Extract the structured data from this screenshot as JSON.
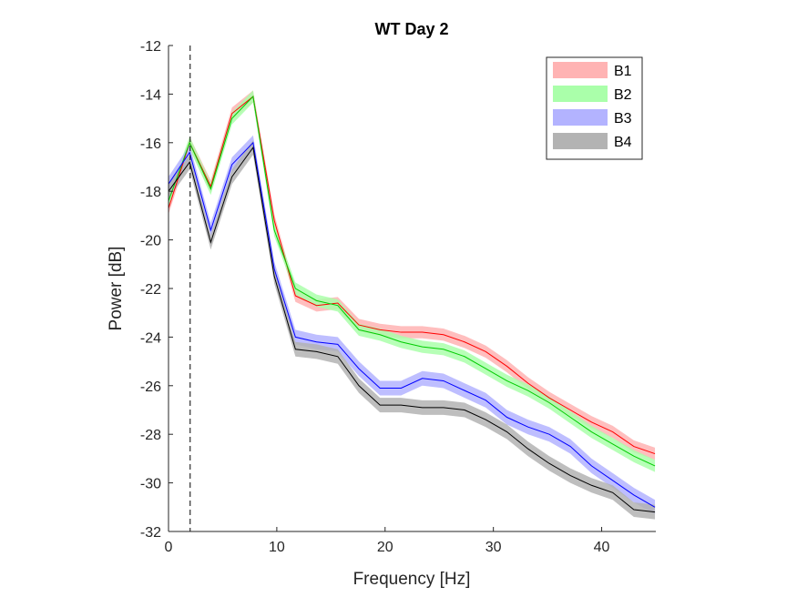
{
  "chart_data": {
    "type": "line",
    "title": "WT Day 2",
    "xlabel": "Frequency [Hz]",
    "ylabel": "Power [dB]",
    "xlim": [
      0,
      45
    ],
    "ylim": [
      -32,
      -12
    ],
    "xticks": [
      0,
      10,
      20,
      30,
      40
    ],
    "yticks": [
      -32,
      -30,
      -28,
      -26,
      -24,
      -22,
      -20,
      -18,
      -16,
      -14,
      -12
    ],
    "grid": false,
    "legend_position": "top-right",
    "vertical_marker_x": 2,
    "x": [
      0,
      1.95,
      3.9,
      5.86,
      7.81,
      9.77,
      11.72,
      13.67,
      15.63,
      17.58,
      19.53,
      21.48,
      23.44,
      25.39,
      27.34,
      29.3,
      31.25,
      33.2,
      35.16,
      37.11,
      39.06,
      41.02,
      42.97,
      44.92
    ],
    "series": [
      {
        "name": "B1",
        "color": "#ff0000",
        "band_color": "#ffb3b3",
        "band_halfwidth": 0.25,
        "values": [
          -18.7,
          -16.0,
          -17.8,
          -14.8,
          -14.1,
          -19.2,
          -22.3,
          -22.7,
          -22.6,
          -23.5,
          -23.7,
          -23.8,
          -23.8,
          -23.9,
          -24.2,
          -24.6,
          -25.2,
          -25.9,
          -26.5,
          -27.0,
          -27.5,
          -27.9,
          -28.5,
          -28.8
        ]
      },
      {
        "name": "B2",
        "color": "#00cc00",
        "band_color": "#aaffaa",
        "band_halfwidth": 0.25,
        "values": [
          -18.4,
          -16.0,
          -17.9,
          -15.0,
          -14.1,
          -19.6,
          -22.0,
          -22.5,
          -22.7,
          -23.7,
          -23.9,
          -24.2,
          -24.4,
          -24.5,
          -24.8,
          -25.3,
          -25.8,
          -26.2,
          -26.7,
          -27.3,
          -27.9,
          -28.4,
          -28.9,
          -29.3
        ]
      },
      {
        "name": "B3",
        "color": "#0000ff",
        "band_color": "#b3b3ff",
        "band_halfwidth": 0.3,
        "values": [
          -17.7,
          -16.4,
          -19.6,
          -16.9,
          -16.0,
          -21.2,
          -24.0,
          -24.2,
          -24.3,
          -25.3,
          -26.1,
          -26.1,
          -25.7,
          -25.8,
          -26.2,
          -26.6,
          -27.3,
          -27.7,
          -28.0,
          -28.5,
          -29.3,
          -29.9,
          -30.5,
          -31.0
        ]
      },
      {
        "name": "B4",
        "color": "#000000",
        "band_color": "#b3b3b3",
        "band_halfwidth": 0.3,
        "values": [
          -18.0,
          -16.8,
          -20.1,
          -17.4,
          -16.2,
          -21.5,
          -24.5,
          -24.6,
          -24.8,
          -26.0,
          -26.8,
          -26.8,
          -26.9,
          -26.9,
          -27.0,
          -27.4,
          -27.9,
          -28.6,
          -29.2,
          -29.7,
          -30.1,
          -30.4,
          -31.1,
          -31.2
        ]
      }
    ]
  }
}
